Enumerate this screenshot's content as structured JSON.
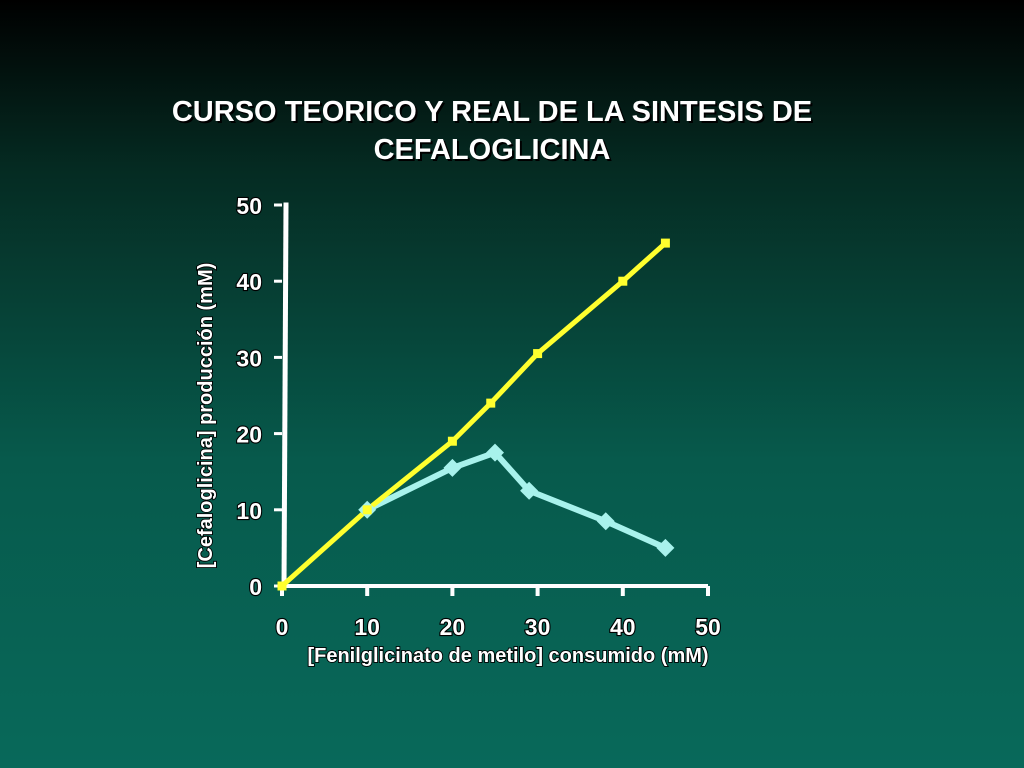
{
  "chart_data": {
    "type": "line",
    "title": [
      "CURSO TEORICO Y REAL DE LA SINTESIS DE",
      "CEFALOGLICINA"
    ],
    "xlabel": "[Fenilglicinato de metilo] consumido (mM)",
    "ylabel": "[Cefaloglicina] producción (mM)",
    "xlim": [
      0,
      50
    ],
    "ylim": [
      0,
      50
    ],
    "xticks": [
      0,
      10,
      20,
      30,
      40,
      50
    ],
    "yticks": [
      0,
      10,
      20,
      30,
      40,
      50
    ],
    "grid": false,
    "series": [
      {
        "color": "#ffff2e",
        "marker": "square",
        "points": [
          [
            0,
            0
          ],
          [
            10,
            10
          ],
          [
            20,
            19
          ],
          [
            24.5,
            24
          ],
          [
            30,
            30.5
          ],
          [
            40,
            40
          ],
          [
            45,
            45
          ]
        ]
      },
      {
        "color": "#a8f2ec",
        "marker": "diamond",
        "points": [
          [
            10,
            10
          ],
          [
            20,
            15.5
          ],
          [
            25,
            17.5
          ],
          [
            29,
            12.5
          ],
          [
            38,
            8.5
          ],
          [
            45,
            5
          ]
        ]
      }
    ]
  }
}
